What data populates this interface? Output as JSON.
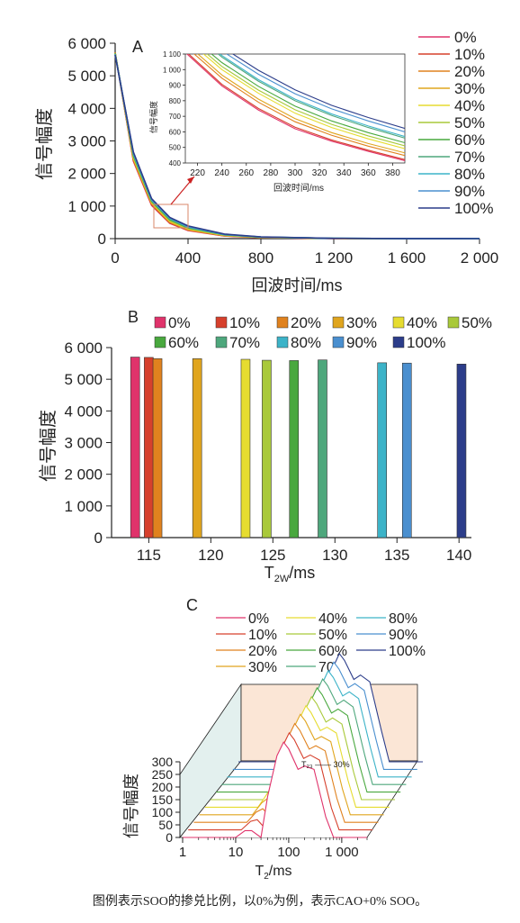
{
  "colors": {
    "0%": "#e0336b",
    "10%": "#d6402c",
    "20%": "#e0821e",
    "30%": "#e0a51e",
    "40%": "#e6dc30",
    "50%": "#a9c93a",
    "60%": "#49a83e",
    "70%": "#4ea77c",
    "80%": "#3cb3c8",
    "90%": "#4a8fcf",
    "100%": "#2c3d8a"
  },
  "chart_data": [
    {
      "panel": "A",
      "type": "line",
      "ylabel": "信号幅度",
      "xlabel": "回波时间/ms",
      "xlim": [
        0,
        2000
      ],
      "ylim": [
        0,
        6000
      ],
      "x_ticks": [
        "0",
        "400",
        "800",
        "1 200",
        "1 600",
        "2 000"
      ],
      "y_ticks": [
        "0",
        "1 000",
        "2 000",
        "3 000",
        "4 000",
        "5 000",
        "6 000"
      ],
      "legend": [
        "0%",
        "10%",
        "20%",
        "30%",
        "40%",
        "50%",
        "60%",
        "70%",
        "80%",
        "90%",
        "100%"
      ],
      "x": [
        0,
        100,
        200,
        300,
        400,
        600,
        800,
        1200,
        1600,
        2000
      ],
      "series": [
        {
          "name": "0%",
          "values": [
            5700,
            2380,
            1020,
            470,
            250,
            80,
            30,
            5,
            1,
            0
          ]
        },
        {
          "name": "10%",
          "values": [
            5720,
            2400,
            1040,
            480,
            260,
            85,
            32,
            6,
            1,
            0
          ]
        },
        {
          "name": "20%",
          "values": [
            5710,
            2430,
            1070,
            500,
            270,
            90,
            35,
            6,
            1,
            0
          ]
        },
        {
          "name": "30%",
          "values": [
            5710,
            2460,
            1090,
            520,
            285,
            95,
            38,
            7,
            1,
            0
          ]
        },
        {
          "name": "40%",
          "values": [
            5700,
            2490,
            1110,
            540,
            300,
            100,
            40,
            7,
            1,
            0
          ]
        },
        {
          "name": "50%",
          "values": [
            5690,
            2520,
            1130,
            560,
            315,
            110,
            42,
            8,
            1,
            0
          ]
        },
        {
          "name": "60%",
          "values": [
            5690,
            2550,
            1150,
            580,
            330,
            115,
            45,
            8,
            1,
            0
          ]
        },
        {
          "name": "70%",
          "values": [
            5680,
            2580,
            1170,
            600,
            345,
            120,
            48,
            9,
            2,
            0
          ]
        },
        {
          "name": "80%",
          "values": [
            5650,
            2610,
            1190,
            620,
            360,
            125,
            50,
            9,
            2,
            0
          ]
        },
        {
          "name": "90%",
          "values": [
            5650,
            2640,
            1210,
            640,
            375,
            130,
            52,
            10,
            2,
            0
          ]
        },
        {
          "name": "100%",
          "values": [
            5640,
            2660,
            1230,
            650,
            390,
            140,
            55,
            10,
            2,
            0
          ]
        }
      ],
      "inset": {
        "ylabel": "信号幅度",
        "xlabel": "回波时间/ms",
        "xlim": [
          210,
          390
        ],
        "ylim": [
          400,
          1100
        ],
        "x_ticks": [
          "220",
          "240",
          "260",
          "280",
          "300",
          "320",
          "340",
          "360",
          "380"
        ],
        "y_ticks": [
          "400",
          "500",
          "600",
          "700",
          "800",
          "900",
          "1 000",
          "1 100"
        ],
        "x": [
          210,
          240,
          270,
          300,
          330,
          360,
          390
        ],
        "series": [
          {
            "name": "0%",
            "values": [
              1110,
              895,
              740,
              620,
              540,
              475,
              415
            ]
          },
          {
            "name": "10%",
            "values": [
              1120,
              905,
              750,
              630,
              548,
              482,
              422
            ]
          },
          {
            "name": "20%",
            "values": [
              1150,
              945,
              790,
              665,
              578,
              508,
              448
            ]
          },
          {
            "name": "30%",
            "values": [
              1170,
              965,
              810,
              685,
              595,
              525,
              465
            ]
          },
          {
            "name": "40%",
            "values": [
              1200,
              1000,
              848,
              720,
              628,
              555,
              492
            ]
          },
          {
            "name": "50%",
            "values": [
              1220,
              1020,
              868,
              742,
              648,
              574,
              510
            ]
          },
          {
            "name": "60%",
            "values": [
              1240,
              1045,
              892,
              765,
              670,
              595,
              530
            ]
          },
          {
            "name": "70%",
            "values": [
              1280,
              1080,
              925,
              800,
              705,
              628,
              560
            ]
          },
          {
            "name": "80%",
            "values": [
              1290,
              1090,
              935,
              810,
              715,
              638,
              570
            ]
          },
          {
            "name": "90%",
            "values": [
              1320,
              1120,
              970,
              845,
              748,
              670,
              600
            ]
          },
          {
            "name": "100%",
            "values": [
              1340,
              1145,
              995,
              870,
              770,
              692,
              622
            ]
          }
        ]
      }
    },
    {
      "panel": "B",
      "type": "bar",
      "ylabel": "信号幅度",
      "xlabel": "T",
      "xlabel_sub": "2W",
      "xlabel_unit": "/ms",
      "xlim": [
        112,
        141
      ],
      "ylim": [
        0,
        6000
      ],
      "x_ticks": [
        "115",
        "120",
        "125",
        "130",
        "135",
        "140"
      ],
      "y_ticks": [
        "0",
        "1 000",
        "2 000",
        "3 000",
        "4 000",
        "5 000",
        "6 000"
      ],
      "bars": [
        {
          "name": "0%",
          "x": 113.9,
          "value": 5700
        },
        {
          "name": "10%",
          "x": 115.0,
          "value": 5690
        },
        {
          "name": "20%",
          "x": 115.7,
          "value": 5650
        },
        {
          "name": "30%",
          "x": 118.9,
          "value": 5650
        },
        {
          "name": "40%",
          "x": 122.8,
          "value": 5630
        },
        {
          "name": "50%",
          "x": 124.5,
          "value": 5600
        },
        {
          "name": "60%",
          "x": 126.7,
          "value": 5590
        },
        {
          "name": "70%",
          "x": 129.0,
          "value": 5610
        },
        {
          "name": "80%",
          "x": 133.8,
          "value": 5520
        },
        {
          "name": "90%",
          "x": 135.8,
          "value": 5510
        },
        {
          "name": "100%",
          "x": 140.2,
          "value": 5480
        }
      ]
    },
    {
      "panel": "C",
      "type": "area",
      "ylabel": "信号幅度",
      "xlabel": "T",
      "xlabel_sub": "2",
      "xlabel_unit": "/ms",
      "x_scale": "log",
      "xlim": [
        1,
        3000
      ],
      "ylim": [
        0,
        300
      ],
      "x_ticks": [
        "1",
        "10",
        "100",
        "1 000"
      ],
      "y_ticks": [
        "0",
        "50",
        "100",
        "150",
        "200",
        "250",
        "300"
      ],
      "annotation": "T₂₃ —— 30%",
      "legend": [
        "0%",
        "10%",
        "20%",
        "30%",
        "40%",
        "50%",
        "60%",
        "70%",
        "80%",
        "90%",
        "100%"
      ],
      "x": [
        1,
        5,
        10,
        15,
        20,
        30,
        40,
        60,
        80,
        100,
        150,
        200,
        300,
        500,
        700,
        1000,
        1500,
        2000,
        3000
      ],
      "series": [
        {
          "name": "0%",
          "values": [
            0,
            0,
            0,
            20,
            20,
            0,
            120,
            240,
            280,
            260,
            200,
            210,
            200,
            60,
            0,
            0,
            0,
            0,
            0
          ]
        },
        {
          "name": "10%",
          "values": [
            0,
            0,
            0,
            25,
            30,
            0,
            125,
            245,
            285,
            265,
            210,
            220,
            205,
            65,
            0,
            0,
            0,
            0,
            0
          ]
        },
        {
          "name": "20%",
          "values": [
            0,
            0,
            0,
            30,
            40,
            10,
            130,
            250,
            290,
            270,
            215,
            225,
            210,
            70,
            0,
            0,
            0,
            0,
            0
          ]
        },
        {
          "name": "30%",
          "values": [
            0,
            0,
            0,
            35,
            50,
            20,
            135,
            255,
            295,
            275,
            220,
            230,
            215,
            75,
            0,
            0,
            0,
            0,
            0
          ]
        },
        {
          "name": "40%",
          "values": [
            0,
            0,
            0,
            40,
            55,
            25,
            140,
            258,
            298,
            278,
            225,
            235,
            218,
            78,
            0,
            0,
            0,
            0,
            0
          ]
        },
        {
          "name": "50%",
          "values": [
            0,
            0,
            0,
            45,
            60,
            30,
            145,
            262,
            302,
            282,
            228,
            240,
            222,
            80,
            0,
            0,
            0,
            0,
            0
          ]
        },
        {
          "name": "60%",
          "values": [
            0,
            0,
            0,
            48,
            62,
            33,
            148,
            265,
            306,
            286,
            232,
            244,
            225,
            82,
            0,
            0,
            0,
            0,
            0
          ]
        },
        {
          "name": "70%",
          "values": [
            0,
            0,
            0,
            50,
            65,
            35,
            150,
            268,
            310,
            290,
            235,
            248,
            228,
            85,
            0,
            0,
            0,
            0,
            0
          ]
        },
        {
          "name": "80%",
          "values": [
            0,
            0,
            0,
            52,
            68,
            38,
            152,
            270,
            312,
            292,
            238,
            250,
            230,
            86,
            0,
            0,
            0,
            0,
            0
          ]
        },
        {
          "name": "90%",
          "values": [
            0,
            0,
            0,
            55,
            70,
            40,
            155,
            272,
            315,
            295,
            240,
            252,
            232,
            88,
            0,
            0,
            0,
            0,
            0
          ]
        },
        {
          "name": "100%",
          "values": [
            0,
            0,
            0,
            58,
            72,
            42,
            158,
            275,
            318,
            298,
            242,
            255,
            235,
            90,
            0,
            0,
            0,
            0,
            0
          ]
        }
      ]
    }
  ],
  "panel_labels": {
    "a": "A",
    "b": "B",
    "c": "C"
  },
  "caption": "图例表示SOO的掺兑比例，以0%为例，表示CAO+0% SOO。"
}
